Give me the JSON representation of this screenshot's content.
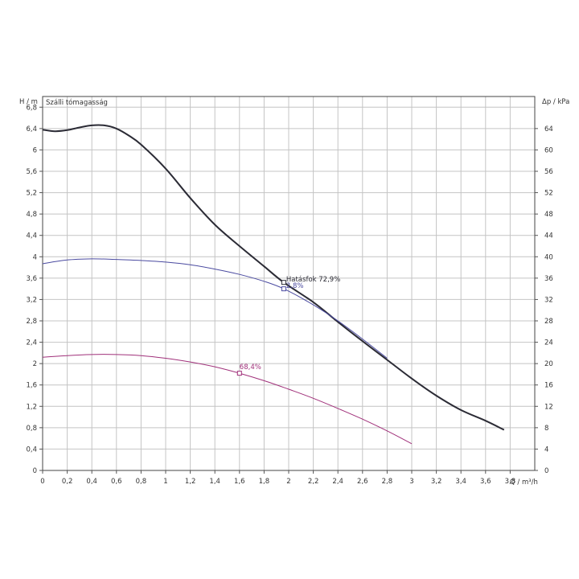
{
  "chart_data": {
    "type": "line",
    "title": "Szálli tómagasság",
    "xlabel": "Q / m³/h",
    "ylabel_left": "H / m",
    "ylabel_right": "Δp / kPa",
    "xlim": [
      0,
      4.0
    ],
    "ylim": [
      0,
      7.0
    ],
    "ylim_right": [
      0,
      70
    ],
    "grid": true,
    "x_ticks": [
      "0",
      "0,2",
      "0,4",
      "0,6",
      "0,8",
      "1",
      "1,2",
      "1,4",
      "1,6",
      "1,8",
      "2",
      "2,2",
      "2,4",
      "2,6",
      "2,8",
      "3",
      "3,2",
      "3,4",
      "3,6",
      "3,8"
    ],
    "y_ticks": [
      "0",
      "0,4",
      "0,8",
      "1,2",
      "1,6",
      "2",
      "2,4",
      "2,8",
      "3,2",
      "3,6",
      "4",
      "4,4",
      "4,8",
      "5,2",
      "5,6",
      "6",
      "6,4",
      "6,8"
    ],
    "y_ticks_right": [
      "0",
      "4",
      "8",
      "12",
      "16",
      "20",
      "24",
      "28",
      "32",
      "36",
      "40",
      "44",
      "48",
      "52",
      "56",
      "60",
      "64"
    ],
    "series": [
      {
        "color": "#2b2b35",
        "x": [
          0,
          0.1,
          0.2,
          0.3,
          0.4,
          0.5,
          0.6,
          0.7,
          0.8,
          1.0,
          1.2,
          1.4,
          1.6,
          1.8,
          1.96,
          2.2,
          2.4,
          2.6,
          2.8,
          3.0,
          3.2,
          3.4,
          3.6,
          3.75
        ],
        "y": [
          6.38,
          6.35,
          6.37,
          6.42,
          6.46,
          6.46,
          6.4,
          6.27,
          6.1,
          5.65,
          5.1,
          4.6,
          4.2,
          3.82,
          3.52,
          3.15,
          2.78,
          2.42,
          2.07,
          1.72,
          1.4,
          1.13,
          0.93,
          0.76
        ]
      },
      {
        "color": "#4a4aa0",
        "x": [
          0,
          0.2,
          0.4,
          0.6,
          0.8,
          1.0,
          1.2,
          1.4,
          1.6,
          1.8,
          1.96,
          2.2,
          2.4,
          2.6,
          2.8
        ],
        "y": [
          3.87,
          3.94,
          3.96,
          3.95,
          3.93,
          3.9,
          3.85,
          3.77,
          3.67,
          3.54,
          3.4,
          3.1,
          2.8,
          2.46,
          2.1
        ]
      },
      {
        "color": "#a0307a",
        "x": [
          0,
          0.2,
          0.4,
          0.6,
          0.8,
          1.0,
          1.2,
          1.4,
          1.6,
          1.8,
          2.0,
          2.2,
          2.4,
          2.6,
          2.8,
          3.0
        ],
        "y": [
          2.12,
          2.15,
          2.17,
          2.17,
          2.15,
          2.1,
          2.03,
          1.94,
          1.82,
          1.68,
          1.52,
          1.35,
          1.16,
          0.96,
          0.74,
          0.5
        ]
      }
    ],
    "markers": [
      {
        "label": "Hatásfok  72,9%",
        "x": 1.96,
        "y": 3.52,
        "color": "#2b2b35",
        "anchor": "right"
      },
      {
        "label": "2,8%",
        "x": 1.96,
        "y": 3.4,
        "color": "#4a4aa0",
        "anchor": "right"
      },
      {
        "label": "68,4%",
        "x": 1.6,
        "y": 1.82,
        "color": "#a0307a",
        "anchor": "up"
      }
    ]
  }
}
